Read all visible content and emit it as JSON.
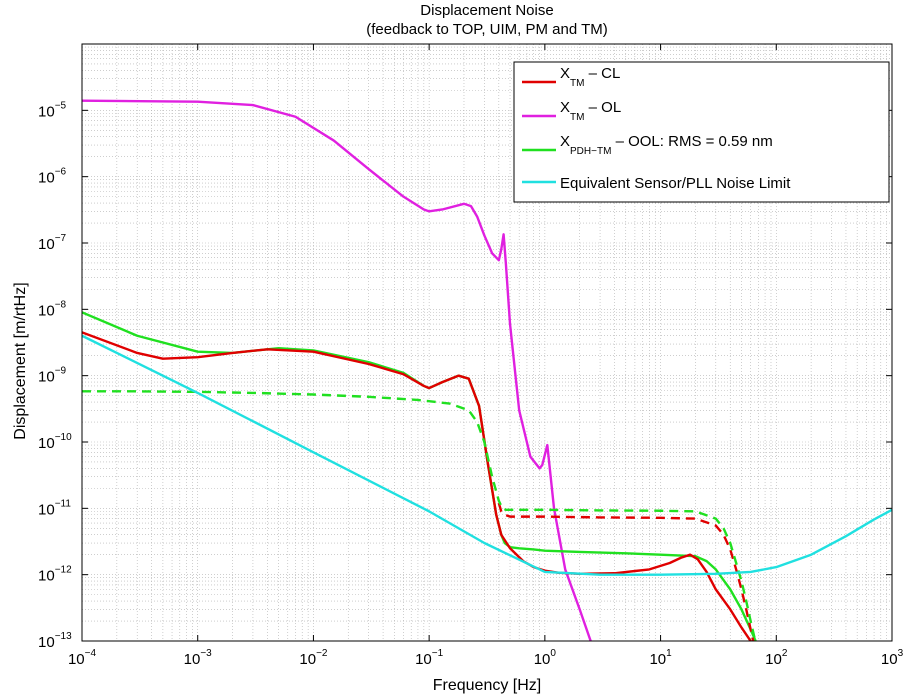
{
  "chart_data": {
    "type": "line",
    "title": "Displacement Noise",
    "subtitle": "(feedback to TOP, UIM, PM and TM)",
    "xlabel": "Frequency [Hz]",
    "ylabel": "Displacement [m/rtHz]",
    "xscale": "log",
    "yscale": "log",
    "xlim": [
      0.0001,
      1000
    ],
    "ylim": [
      1e-13,
      0.0001
    ],
    "grid": true,
    "legend_position": "top-right",
    "x_ticks": [
      {
        "base": "10",
        "exp": "−4"
      },
      {
        "base": "10",
        "exp": "−3"
      },
      {
        "base": "10",
        "exp": "−2"
      },
      {
        "base": "10",
        "exp": "−1"
      },
      {
        "base": "10",
        "exp": "0"
      },
      {
        "base": "10",
        "exp": "1"
      },
      {
        "base": "10",
        "exp": "2"
      },
      {
        "base": "10",
        "exp": "3"
      }
    ],
    "y_ticks": [
      {
        "base": "10",
        "exp": "−13"
      },
      {
        "base": "10",
        "exp": "−12"
      },
      {
        "base": "10",
        "exp": "−11"
      },
      {
        "base": "10",
        "exp": "−10"
      },
      {
        "base": "10",
        "exp": "−9"
      },
      {
        "base": "10",
        "exp": "−8"
      },
      {
        "base": "10",
        "exp": "−7"
      },
      {
        "base": "10",
        "exp": "−6"
      },
      {
        "base": "10",
        "exp": "−5"
      }
    ],
    "legend": [
      {
        "main": "X",
        "sub": "TM",
        "rest": " – CL",
        "color": "#e00000"
      },
      {
        "main": "X",
        "sub": "TM",
        "rest": " – OL",
        "color": "#e020e0"
      },
      {
        "main": "X",
        "sub": "PDH−TM",
        "rest": " – OOL: RMS = 0.59 nm",
        "color": "#20e020"
      },
      {
        "main": "Equivalent Sensor/PLL Noise Limit",
        "sub": "",
        "rest": "",
        "color": "#20e0e0"
      }
    ],
    "series": [
      {
        "legend_index": 1,
        "color": "#e020e0",
        "dashed": false,
        "x": [
          0.0001,
          0.001,
          0.003,
          0.007,
          0.015,
          0.03,
          0.06,
          0.09,
          0.1,
          0.13,
          0.2,
          0.23,
          0.26,
          0.3,
          0.35,
          0.4,
          0.42,
          0.44,
          0.46,
          0.5,
          0.6,
          0.75,
          0.9,
          0.95,
          1.05,
          1.2,
          1.5,
          2.0,
          2.6
        ],
        "y": [
          1.4e-05,
          1.35e-05,
          1.2e-05,
          8e-06,
          3.5e-06,
          1.3e-06,
          5e-07,
          3.2e-07,
          3e-07,
          3.2e-07,
          3.9e-07,
          3.6e-07,
          2.5e-07,
          1.3e-07,
          7e-08,
          5.5e-08,
          8e-08,
          1.35e-07,
          5e-08,
          6e-09,
          3e-10,
          6e-11,
          4e-11,
          4.5e-11,
          9e-11,
          1e-11,
          1.2e-12,
          3e-13,
          8e-14
        ]
      },
      {
        "legend_index": 2,
        "color": "#20e020",
        "dashed": false,
        "x": [
          0.0001,
          0.0003,
          0.001,
          0.002,
          0.005,
          0.01,
          0.03,
          0.06,
          0.09,
          0.1,
          0.13,
          0.18,
          0.22,
          0.27,
          0.32,
          0.38,
          0.42,
          0.45,
          0.5,
          0.6,
          0.8,
          1.0,
          2.0,
          5.0,
          10,
          20,
          25,
          30,
          40,
          50,
          60,
          70
        ],
        "y": [
          9e-09,
          4e-09,
          2.3e-09,
          2.2e-09,
          2.6e-09,
          2.4e-09,
          1.6e-09,
          1.1e-09,
          7e-10,
          6.5e-10,
          8e-10,
          1e-09,
          9e-10,
          3.5e-10,
          5e-11,
          8e-12,
          4e-12,
          3e-12,
          2.6e-12,
          2.5e-12,
          2.4e-12,
          2.3e-12,
          2.2e-12,
          2.1e-12,
          2e-12,
          1.9e-12,
          1.6e-12,
          1.2e-12,
          6e-13,
          3e-13,
          1.5e-13,
          8e-14
        ]
      },
      {
        "legend_index": 0,
        "color": "#e00000",
        "dashed": false,
        "x": [
          0.0001,
          0.0003,
          0.0005,
          0.001,
          0.002,
          0.004,
          0.01,
          0.03,
          0.06,
          0.09,
          0.1,
          0.13,
          0.18,
          0.22,
          0.27,
          0.32,
          0.38,
          0.42,
          0.5,
          0.65,
          0.8,
          1.0,
          1.3,
          2.0,
          4.0,
          8.0,
          12,
          15,
          18,
          21,
          25,
          30,
          40,
          50,
          60,
          70
        ],
        "y": [
          4.5e-09,
          2.2e-09,
          1.8e-09,
          1.9e-09,
          2.2e-09,
          2.5e-09,
          2.3e-09,
          1.5e-09,
          1.05e-09,
          7e-10,
          6.5e-10,
          8e-10,
          1e-09,
          9e-10,
          3.5e-10,
          5e-11,
          8e-12,
          4e-12,
          2.5e-12,
          1.6e-12,
          1.3e-12,
          1.15e-12,
          1.07e-12,
          1.03e-12,
          1.05e-12,
          1.2e-12,
          1.5e-12,
          1.8e-12,
          2e-12,
          1.7e-12,
          1.1e-12,
          6e-13,
          3e-13,
          1.6e-13,
          1e-13,
          7e-14
        ]
      },
      {
        "legend_index": 0,
        "color": "#e00000",
        "dashed": true,
        "x": [
          0.4,
          0.42,
          0.45,
          0.5,
          1,
          3,
          10,
          20,
          30,
          35,
          40,
          45,
          50,
          55,
          60,
          65
        ],
        "y": [
          1.2e-11,
          9e-12,
          8e-12,
          7.5e-12,
          7.5e-12,
          7.3e-12,
          7.2e-12,
          7e-12,
          5.5e-12,
          4e-12,
          2.4e-12,
          1.2e-12,
          6e-13,
          3e-13,
          1.5e-13,
          8e-14
        ]
      },
      {
        "legend_index": 2,
        "color": "#20e020",
        "dashed": true,
        "x": [
          0.0001,
          0.0003,
          0.001,
          0.003,
          0.01,
          0.03,
          0.08,
          0.15,
          0.22,
          0.26,
          0.3,
          0.35,
          0.4,
          0.43,
          0.46,
          0.5,
          1,
          3,
          10,
          20,
          30,
          35,
          40,
          45,
          50,
          55,
          60,
          65,
          70
        ],
        "y": [
          5.8e-10,
          5.8e-10,
          5.7e-10,
          5.5e-10,
          5.2e-10,
          4.8e-10,
          4.3e-10,
          3.8e-10,
          3e-10,
          2e-10,
          1e-10,
          3e-11,
          1.3e-11,
          1e-11,
          9.5e-12,
          9.5e-12,
          9.5e-12,
          9.3e-12,
          9.2e-12,
          9e-12,
          7e-12,
          5e-12,
          3e-12,
          1.5e-12,
          8e-13,
          4e-13,
          2e-13,
          1.1e-13,
          7e-14
        ]
      },
      {
        "legend_index": 3,
        "color": "#20e0e0",
        "dashed": false,
        "x": [
          0.0001,
          0.001,
          0.01,
          0.1,
          0.3,
          1,
          3,
          10,
          30,
          60,
          100,
          200,
          400,
          700,
          1000
        ],
        "y": [
          4e-09,
          5.5e-10,
          7e-11,
          9e-12,
          3e-12,
          1.1e-12,
          1e-12,
          1e-12,
          1.03e-12,
          1.1e-12,
          1.3e-12,
          2e-12,
          3.8e-12,
          6.8e-12,
          9.5e-12
        ]
      }
    ]
  }
}
